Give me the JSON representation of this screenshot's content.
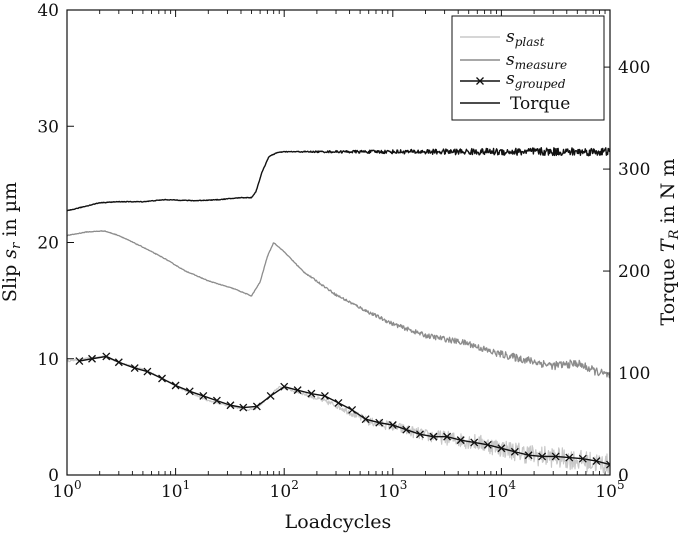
{
  "chart_data": {
    "type": "line",
    "title": "",
    "xlabel": "Loadcycles",
    "ylabel_left": {
      "main": "Slip ",
      "sym": "s",
      "sub": "r",
      "rest": " in µm"
    },
    "ylabel_right": {
      "main": "Torque ",
      "sym": "T",
      "sub": "R",
      "rest": " in N m"
    },
    "x_scale": "log",
    "xlim": [
      1,
      100000
    ],
    "ylim_left": [
      0,
      40
    ],
    "ylim_right": [
      0,
      456
    ],
    "x_ticks": [
      {
        "value": 1,
        "base": "10",
        "exp": "0"
      },
      {
        "value": 10,
        "base": "10",
        "exp": "1"
      },
      {
        "value": 100,
        "base": "10",
        "exp": "2"
      },
      {
        "value": 1000,
        "base": "10",
        "exp": "3"
      },
      {
        "value": 10000,
        "base": "10",
        "exp": "4"
      },
      {
        "value": 100000,
        "base": "10",
        "exp": "5"
      }
    ],
    "y_ticks_left": [
      "0",
      "10",
      "20",
      "30",
      "40"
    ],
    "y_ticks_right": [
      "0",
      "100",
      "200",
      "300",
      "400"
    ],
    "legend_position": "top-right",
    "series": [
      {
        "name": "s_plast",
        "label_main": "s",
        "label_sub": "plast",
        "axis": "left",
        "color": "#c8c8c8",
        "width": 1.2,
        "marker": "none",
        "noise": 0.9,
        "points": [
          [
            1,
            9.8
          ],
          [
            1.5,
            10.0
          ],
          [
            2.2,
            10.2
          ],
          [
            3,
            9.7
          ],
          [
            5,
            9.1
          ],
          [
            8,
            8.2
          ],
          [
            12,
            7.3
          ],
          [
            20,
            6.4
          ],
          [
            30,
            6.0
          ],
          [
            45,
            5.6
          ],
          [
            55,
            5.7
          ],
          [
            70,
            6.6
          ],
          [
            90,
            7.6
          ],
          [
            150,
            7.0
          ],
          [
            300,
            6.0
          ],
          [
            600,
            4.6
          ],
          [
            1000,
            4.2
          ],
          [
            2000,
            3.4
          ],
          [
            3000,
            3.2
          ],
          [
            6000,
            2.8
          ],
          [
            10000,
            2.3
          ],
          [
            20000,
            1.7
          ],
          [
            40000,
            1.4
          ],
          [
            70000,
            1.1
          ],
          [
            100000,
            0.9
          ]
        ]
      },
      {
        "name": "s_measure",
        "label_main": "s",
        "label_sub": "measure",
        "axis": "left",
        "color": "#8c8c8c",
        "width": 1.3,
        "marker": "none",
        "noise": 0.35,
        "points": [
          [
            1,
            20.6
          ],
          [
            1.5,
            20.9
          ],
          [
            2.2,
            21.0
          ],
          [
            3,
            20.6
          ],
          [
            5,
            19.6
          ],
          [
            8,
            18.6
          ],
          [
            12,
            17.6
          ],
          [
            20,
            16.7
          ],
          [
            35,
            16.0
          ],
          [
            50,
            15.4
          ],
          [
            60,
            16.6
          ],
          [
            70,
            18.8
          ],
          [
            80,
            20.0
          ],
          [
            100,
            19.2
          ],
          [
            150,
            17.5
          ],
          [
            300,
            15.5
          ],
          [
            600,
            14.0
          ],
          [
            1000,
            13.0
          ],
          [
            2000,
            12.0
          ],
          [
            3000,
            11.7
          ],
          [
            5000,
            11.3
          ],
          [
            8000,
            10.6
          ],
          [
            15000,
            10.0
          ],
          [
            30000,
            9.4
          ],
          [
            50000,
            9.6
          ],
          [
            70000,
            9.0
          ],
          [
            100000,
            8.5
          ]
        ]
      },
      {
        "name": "s_grouped",
        "label_main": "s",
        "label_sub": "grouped",
        "axis": "left",
        "color": "#111111",
        "width": 1.4,
        "marker": "x",
        "noise": 0,
        "points": [
          [
            1.3,
            9.8
          ],
          [
            1.7,
            10.0
          ],
          [
            2.3,
            10.2
          ],
          [
            3,
            9.7
          ],
          [
            4.2,
            9.2
          ],
          [
            5.5,
            8.9
          ],
          [
            7.5,
            8.3
          ],
          [
            10,
            7.7
          ],
          [
            13.5,
            7.2
          ],
          [
            18,
            6.8
          ],
          [
            24,
            6.4
          ],
          [
            32,
            6.0
          ],
          [
            42,
            5.8
          ],
          [
            56,
            5.9
          ],
          [
            75,
            6.8
          ],
          [
            100,
            7.6
          ],
          [
            133,
            7.3
          ],
          [
            178,
            7.0
          ],
          [
            237,
            6.8
          ],
          [
            316,
            6.2
          ],
          [
            422,
            5.6
          ],
          [
            562,
            4.8
          ],
          [
            750,
            4.5
          ],
          [
            1000,
            4.3
          ],
          [
            1330,
            3.9
          ],
          [
            1780,
            3.5
          ],
          [
            2370,
            3.3
          ],
          [
            3160,
            3.3
          ],
          [
            4220,
            3.0
          ],
          [
            5620,
            2.8
          ],
          [
            7500,
            2.6
          ],
          [
            10000,
            2.3
          ],
          [
            13300,
            2.0
          ],
          [
            17800,
            1.7
          ],
          [
            23700,
            1.6
          ],
          [
            31600,
            1.6
          ],
          [
            42200,
            1.5
          ],
          [
            56200,
            1.4
          ],
          [
            75000,
            1.2
          ],
          [
            100000,
            0.9
          ]
        ]
      },
      {
        "name": "Torque",
        "label_main": "Torque",
        "label_sub": "",
        "axis": "right",
        "color": "#111111",
        "width": 1.4,
        "marker": "none",
        "noise": 4,
        "points": [
          [
            1,
            259
          ],
          [
            2,
            267
          ],
          [
            3,
            268
          ],
          [
            5,
            268
          ],
          [
            8,
            270
          ],
          [
            15,
            269
          ],
          [
            25,
            270
          ],
          [
            40,
            272
          ],
          [
            50,
            272
          ],
          [
            55,
            278
          ],
          [
            62,
            296
          ],
          [
            72,
            312
          ],
          [
            85,
            316
          ],
          [
            100,
            317
          ],
          [
            1000,
            317
          ],
          [
            10000,
            317
          ],
          [
            100000,
            317
          ]
        ]
      }
    ]
  }
}
